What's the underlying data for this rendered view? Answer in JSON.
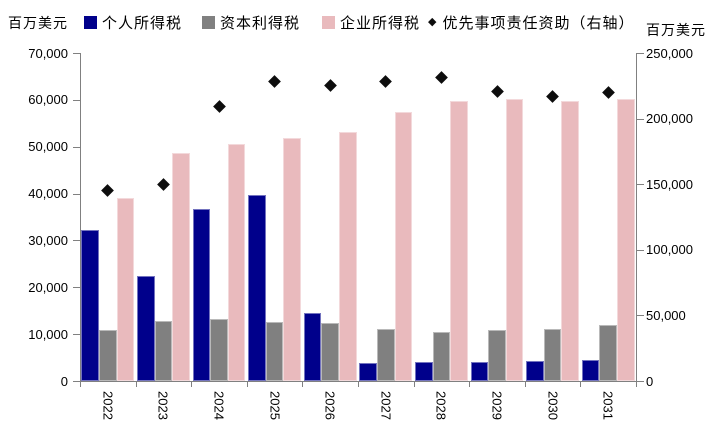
{
  "chart_data": {
    "type": "bar",
    "title": "",
    "legend_position": "top",
    "grid": false,
    "x_label_rotation": 90,
    "left_axis": {
      "label": "百万美元",
      "min": 0,
      "max": 70000,
      "tick_step": 10000,
      "tick_labels": [
        "0",
        "10,000",
        "20,000",
        "30,000",
        "40,000",
        "50,000",
        "60,000",
        "70,000"
      ]
    },
    "right_axis": {
      "label": "百万美元",
      "min": 0,
      "max": 250000,
      "tick_step": 50000,
      "tick_labels": [
        "0",
        "50,000",
        "100,000",
        "150,000",
        "200,000",
        "250,000"
      ]
    },
    "categories": [
      "2022",
      "2023",
      "2024",
      "2025",
      "2026",
      "2027",
      "2028",
      "2029",
      "2030",
      "2031"
    ],
    "series": [
      {
        "name": "个人所得税",
        "type": "bar",
        "marker": "square",
        "axis": "left",
        "color": "#00008B",
        "values": [
          32300,
          22400,
          36700,
          39600,
          14600,
          3900,
          4000,
          4100,
          4300,
          4400
        ]
      },
      {
        "name": "资本利得税",
        "type": "bar",
        "marker": "square",
        "axis": "left",
        "color": "#808080",
        "values": [
          10800,
          12800,
          13200,
          12500,
          12300,
          11200,
          10400,
          10800,
          11200,
          11900
        ]
      },
      {
        "name": "企业所得税",
        "type": "bar",
        "marker": "square",
        "axis": "left",
        "color": "#E9BABD",
        "values": [
          39100,
          48700,
          50500,
          51800,
          53200,
          57400,
          59700,
          60100,
          59800,
          60300
        ]
      },
      {
        "name": "优先事项责任资助（右轴）",
        "type": "scatter",
        "marker": "diamond",
        "axis": "right",
        "color": "#0D0D0D",
        "values": [
          145000,
          150000,
          209000,
          228000,
          225000,
          228000,
          231000,
          221000,
          217000,
          220000
        ]
      }
    ]
  }
}
